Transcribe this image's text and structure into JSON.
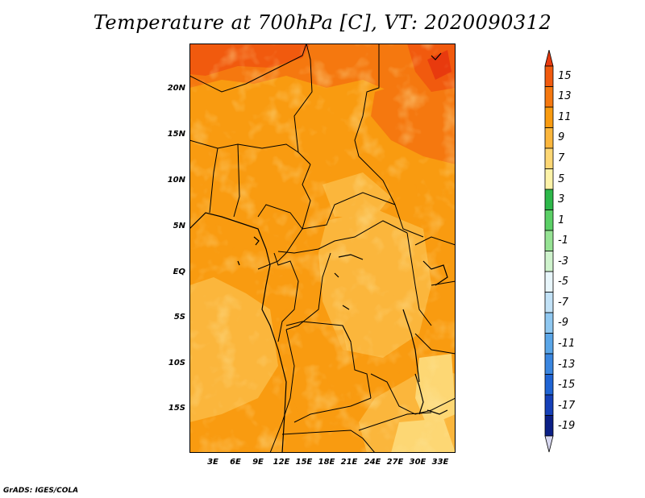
{
  "title": "Temperature at 700hPa [C], VT: 2020090312",
  "credit": "GrADS: IGES/COLA",
  "map": {
    "lat_labels": [
      "20N",
      "15N",
      "10N",
      "5N",
      "EQ",
      "5S",
      "10S",
      "15S"
    ],
    "lon_labels": [
      "3E",
      "6E",
      "9E",
      "12E",
      "15E",
      "18E",
      "21E",
      "24E",
      "27E",
      "30E",
      "33E"
    ],
    "field": "Temperature at 700hPa",
    "units": "C"
  },
  "colorbar": {
    "labels": [
      "15",
      "13",
      "11",
      "9",
      "7",
      "5",
      "3",
      "1",
      "-1",
      "-3",
      "-5",
      "-7",
      "-9",
      "-11",
      "-13",
      "-15",
      "-17",
      "-19"
    ],
    "colors": [
      "#e83a0e",
      "#f15a0e",
      "#f5780f",
      "#f99b10",
      "#fbb63c",
      "#fdd774",
      "#fdf3a8",
      "#2db84a",
      "#5bd066",
      "#96e394",
      "#cff3cd",
      "#e8f6fb",
      "#c2e2f7",
      "#8fc8f1",
      "#5aa6e8",
      "#3a86e0",
      "#1f64d4",
      "#1540b8",
      "#0b1f86",
      "#d8d8f0"
    ]
  }
}
